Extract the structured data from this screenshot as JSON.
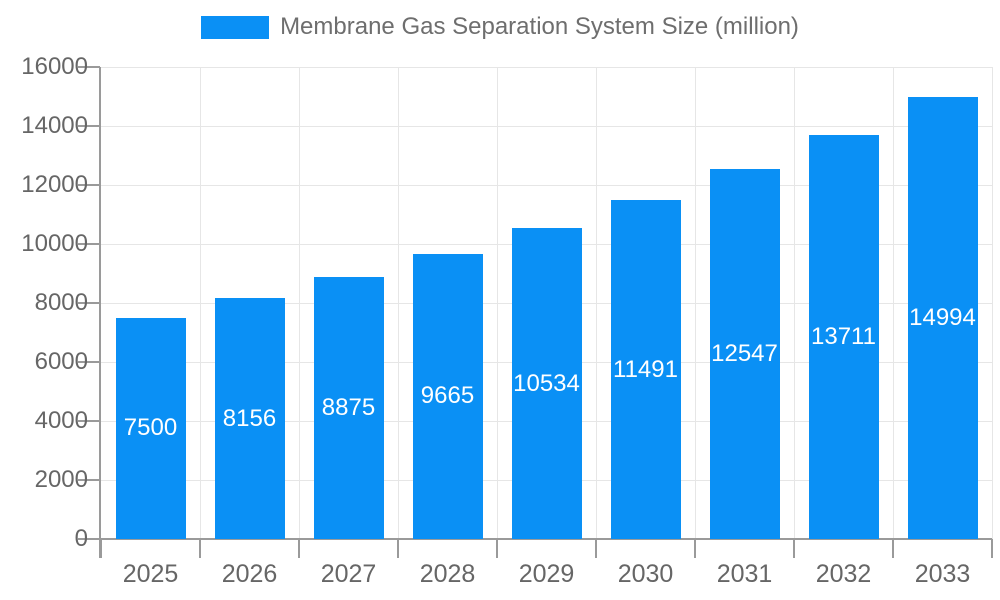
{
  "legend": {
    "label": "Membrane Gas Separation System Size (million)"
  },
  "colors": {
    "bar": "#0a90f5",
    "axis_line": "#9a9a9a",
    "grid_line": "#e6e6e6",
    "axis_text": "#666666",
    "legend_text": "#6e6e6e",
    "bar_label_text": "#ffffff",
    "background": "#ffffff"
  },
  "chart_data": {
    "type": "bar",
    "title": "Membrane Gas Separation System Size (million)",
    "categories": [
      "2025",
      "2026",
      "2027",
      "2028",
      "2029",
      "2030",
      "2031",
      "2032",
      "2033"
    ],
    "series": [
      {
        "name": "Membrane Gas Separation System Size (million)",
        "values": [
          7500,
          8156,
          8875,
          9665,
          10534,
          11491,
          12547,
          13711,
          14994
        ]
      }
    ],
    "xlabel": "",
    "ylabel": "",
    "ylim": [
      0,
      16000
    ],
    "ytick_step": 2000,
    "yticks": [
      0,
      2000,
      4000,
      6000,
      8000,
      10000,
      12000,
      14000,
      16000
    ],
    "grid": "both",
    "legend_position": "top-center",
    "value_labels": "inside-center"
  }
}
